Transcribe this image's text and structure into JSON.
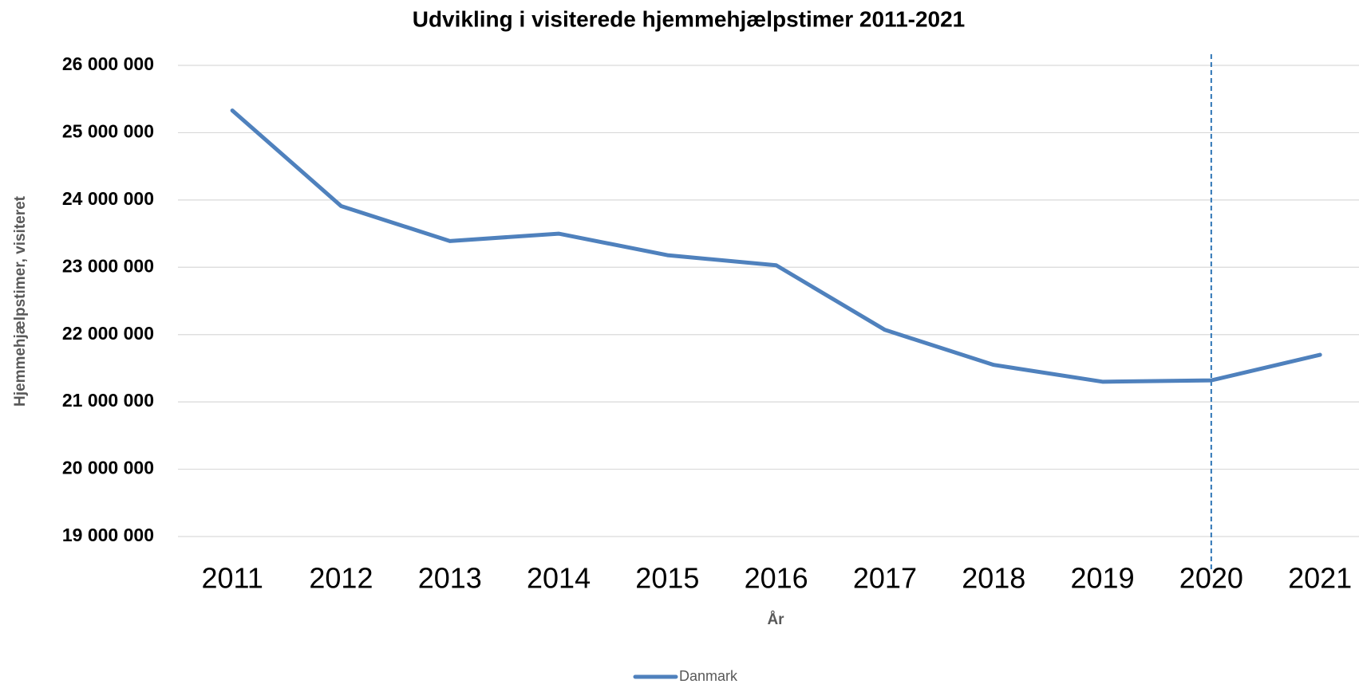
{
  "chart_data": {
    "type": "line",
    "title": "Udvikling i visiterede hjemmehjælpstimer 2011-2021",
    "x_label": "År",
    "y_label": "Hjemmehjælpstimer, visiteret",
    "categories": [
      "2011",
      "2012",
      "2013",
      "2014",
      "2015",
      "2016",
      "2017",
      "2018",
      "2019",
      "2020",
      "2021"
    ],
    "series": [
      {
        "name": "Danmark",
        "color": "#4f81bd",
        "values": [
          25330000,
          23910000,
          23390000,
          23500000,
          23180000,
          23030000,
          22070000,
          21550000,
          21300000,
          21320000,
          21700000
        ]
      }
    ],
    "ylim": [
      19000000,
      26000000
    ],
    "yticks": [
      {
        "value": 19000000,
        "label": "19 000 000"
      },
      {
        "value": 20000000,
        "label": "20 000 000"
      },
      {
        "value": 21000000,
        "label": "21 000 000"
      },
      {
        "value": 22000000,
        "label": "22 000 000"
      },
      {
        "value": 23000000,
        "label": "23 000 000"
      },
      {
        "value": 24000000,
        "label": "24 000 000"
      },
      {
        "value": 25000000,
        "label": "25 000 000"
      },
      {
        "value": 26000000,
        "label": "26 000 000"
      }
    ],
    "grid": true,
    "vline": "2020",
    "legend": "bottom"
  }
}
